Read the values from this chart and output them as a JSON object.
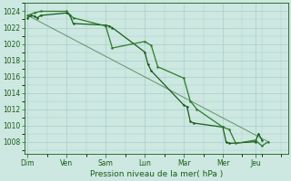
{
  "background_color": "#cce8e0",
  "grid_color": "#aacccc",
  "line_color1": "#1a5c1a",
  "line_color2": "#2d7a2d",
  "xlabel": "Pression niveau de la mer( hPa )",
  "ylim": [
    1006.5,
    1025.0
  ],
  "yticks": [
    1008,
    1010,
    1012,
    1014,
    1016,
    1018,
    1020,
    1022,
    1024
  ],
  "day_labels": [
    "Dim",
    "Ven",
    "Sam",
    "Lun",
    "Mar",
    "Mer",
    "Jeu"
  ],
  "day_positions": [
    0,
    6,
    12,
    18,
    24,
    30,
    35
  ],
  "xlim": [
    -0.5,
    40
  ],
  "series1_x": [
    0,
    0.5,
    1,
    1.5,
    2,
    6,
    6.5,
    7,
    12,
    12.5,
    13,
    18,
    18.5,
    19,
    24,
    24.5,
    25,
    25.5,
    30,
    30.5,
    31,
    35,
    35.5,
    36
  ],
  "series1_y": [
    1023.2,
    1023.5,
    1023.4,
    1023.2,
    1023.5,
    1023.8,
    1023.5,
    1022.5,
    1022.3,
    1022.2,
    1022.0,
    1019.0,
    1017.5,
    1016.7,
    1012.5,
    1012.3,
    1010.5,
    1010.3,
    1009.8,
    1008.0,
    1007.8,
    1008.0,
    1009.0,
    1008.2
  ],
  "series2_x": [
    0,
    1,
    2,
    6,
    7,
    12,
    13,
    18,
    19,
    20,
    24,
    25,
    26,
    30,
    31,
    32,
    35,
    36,
    37
  ],
  "series2_y": [
    1023.5,
    1023.8,
    1024.0,
    1024.0,
    1023.2,
    1022.2,
    1019.5,
    1020.3,
    1019.8,
    1017.2,
    1015.8,
    1013.0,
    1012.0,
    1009.8,
    1009.5,
    1007.8,
    1008.2,
    1007.5,
    1008.0
  ],
  "trend_x": [
    0,
    37
  ],
  "trend_y": [
    1023.5,
    1008.0
  ],
  "xlabel_fontsize": 6.5,
  "tick_fontsize": 5.5
}
